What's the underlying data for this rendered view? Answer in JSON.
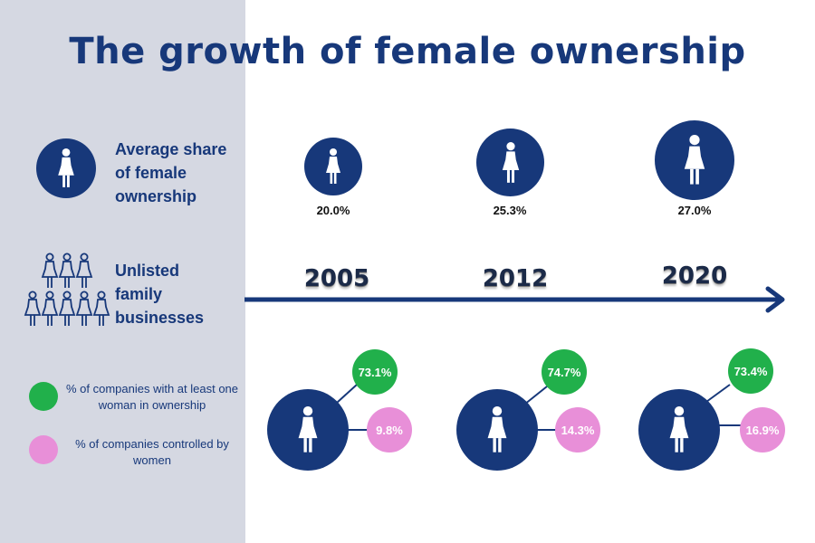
{
  "title": "The growth of female ownership",
  "legend": {
    "avg_share": "Average share\nof female\nownership",
    "family": "Unlisted\nfamily\nbusinesses",
    "green_label": "% of companies with at least one woman in ownership",
    "pink_label": "% of companies controlled by women"
  },
  "colors": {
    "navy": "#17387a",
    "green": "#21b04b",
    "pink": "#e88fd8",
    "panel": "#d5d8e2"
  },
  "icons": [
    "female-figure-icon",
    "family-group-icon",
    "timeline-arrow-icon"
  ],
  "chart_data": {
    "type": "table",
    "years": [
      "2005",
      "2012",
      "2020"
    ],
    "average_share_female_ownership": [
      "20.0%",
      "25.3%",
      "27.0%"
    ],
    "companies_with_at_least_one_woman": [
      "73.1%",
      "74.7%",
      "73.4%"
    ],
    "companies_controlled_by_women": [
      "9.8%",
      "14.3%",
      "16.9%"
    ]
  }
}
